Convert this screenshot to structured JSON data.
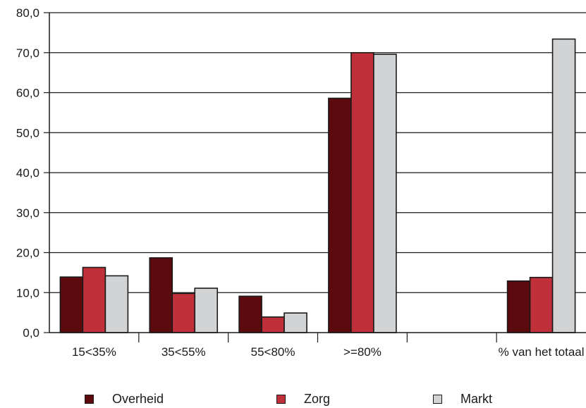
{
  "chart_data": {
    "type": "bar",
    "categories": [
      "15<35%",
      "35<55%",
      "55<80%",
      ">=80%",
      "",
      "% van het totaal"
    ],
    "series": [
      {
        "name": "Overheid",
        "color": "#5c0a0e",
        "values": [
          13.9,
          18.7,
          9.1,
          58.6,
          null,
          12.9
        ]
      },
      {
        "name": "Zorg",
        "color": "#c0303a",
        "values": [
          16.3,
          9.8,
          3.9,
          70.0,
          null,
          13.8
        ]
      },
      {
        "name": "Markt",
        "color": "#d2d3d5",
        "values": [
          14.2,
          11.1,
          4.9,
          69.6,
          null,
          73.4
        ]
      }
    ],
    "ylim": [
      0,
      80
    ],
    "yticks": [
      "0,0",
      "10,0",
      "20,0",
      "30,0",
      "40,0",
      "50,0",
      "60,0",
      "70,0",
      "80,0"
    ],
    "grid": true,
    "legend_position": "bottom",
    "title": "",
    "xlabel": "",
    "ylabel": ""
  }
}
